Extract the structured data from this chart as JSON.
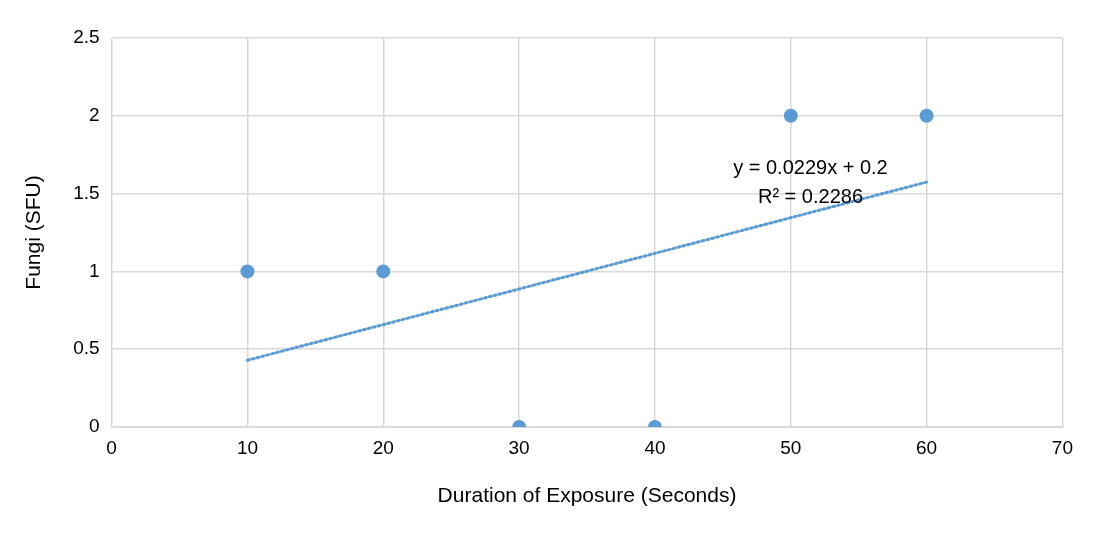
{
  "chart_data": {
    "type": "scatter",
    "xlabel": "Duration of Exposure (Seconds)",
    "ylabel": "Fungi (SFU)",
    "x": [
      10,
      20,
      30,
      40,
      50,
      60
    ],
    "series": [
      {
        "type": "scatter",
        "color": "#5b9bd5",
        "values": [
          1,
          1,
          0,
          0,
          2,
          2
        ],
        "marker": "circle"
      },
      {
        "type": "line",
        "color": "#5b9bd5",
        "x": [
          10,
          60
        ],
        "values": [
          0.429,
          1.574
        ],
        "marker": "none",
        "line_style": "dotted"
      }
    ],
    "xlim": [
      0,
      70
    ],
    "xticks": [
      0,
      10,
      20,
      30,
      40,
      50,
      60,
      70
    ],
    "ylim": [
      0,
      2.5
    ],
    "yticks": [
      0,
      0.5,
      1,
      1.5,
      2,
      2.5
    ],
    "grid": true,
    "legend": false,
    "annotations": [
      "y = 0.0229x + 0.2",
      "R² = 0.2286"
    ]
  }
}
